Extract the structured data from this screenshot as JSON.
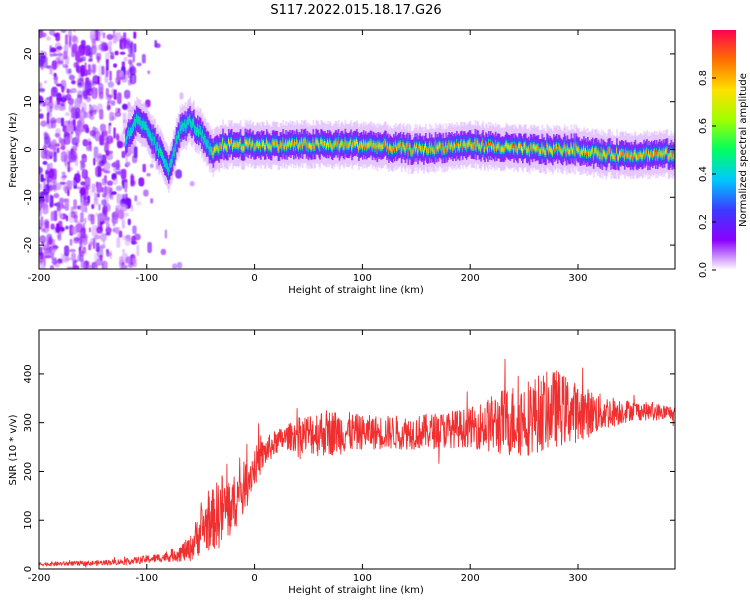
{
  "title": "S117.2022.015.18.17.G26",
  "chart_data": [
    {
      "type": "heatmap",
      "title": "S117.2022.015.18.17.G26",
      "xlabel": "Height of straight line (km)",
      "ylabel": "Frequency (Hz)",
      "xlim": [
        -200,
        390
      ],
      "ylim": [
        -25,
        25
      ],
      "xticks": [
        -200,
        -100,
        0,
        100,
        200,
        300
      ],
      "yticks": [
        -20,
        -10,
        0,
        10,
        20
      ],
      "colorbar": {
        "label": "Normalized spectral amplitude",
        "range": [
          0,
          1
        ],
        "ticks": [
          0.0,
          0.2,
          0.4,
          0.6,
          0.8
        ],
        "tick_labels": [
          "0.0",
          "0.2",
          "0.4",
          "0.6",
          "0.8"
        ],
        "colors": [
          "#ffffff",
          "#8a00ff",
          "#3b3bff",
          "#00c8ff",
          "#00ff60",
          "#a0ff00",
          "#ffe000",
          "#ff7000",
          "#ff0050"
        ]
      },
      "ridge": {
        "x": [
          -120,
          -110,
          -100,
          -90,
          -80,
          -70,
          -60,
          -50,
          -40,
          -30,
          0,
          50,
          100,
          150,
          200,
          250,
          300,
          320,
          390
        ],
        "y": [
          2,
          6,
          4,
          0,
          -4,
          4,
          6,
          3,
          -1,
          1,
          1,
          1,
          1,
          0,
          1,
          0,
          0,
          -1,
          -1
        ]
      },
      "noise_region_x": [
        -200,
        -110
      ]
    },
    {
      "type": "line",
      "xlabel": "Height of straight line (km)",
      "ylabel": "SNR (10 * v/v)",
      "xlim": [
        -200,
        390
      ],
      "ylim": [
        0,
        490
      ],
      "xticks": [
        -200,
        -100,
        0,
        100,
        200,
        300
      ],
      "yticks": [
        0,
        100,
        200,
        300,
        400
      ],
      "color": "#f03030",
      "envelope": {
        "x": [
          -200,
          -150,
          -120,
          -100,
          -80,
          -60,
          -50,
          -40,
          -30,
          -20,
          -10,
          0,
          10,
          20,
          30,
          40,
          60,
          80,
          100,
          150,
          200,
          230,
          250,
          280,
          300,
          320,
          350,
          390
        ],
        "base": [
          10,
          12,
          15,
          20,
          25,
          40,
          80,
          100,
          120,
          130,
          170,
          210,
          240,
          260,
          270,
          275,
          280,
          280,
          280,
          280,
          290,
          300,
          310,
          330,
          320,
          320,
          325,
          320
        ],
        "amp": [
          4,
          5,
          6,
          8,
          10,
          25,
          50,
          60,
          80,
          60,
          50,
          40,
          30,
          25,
          25,
          35,
          50,
          45,
          35,
          35,
          40,
          70,
          80,
          80,
          60,
          40,
          20,
          15
        ]
      }
    }
  ]
}
